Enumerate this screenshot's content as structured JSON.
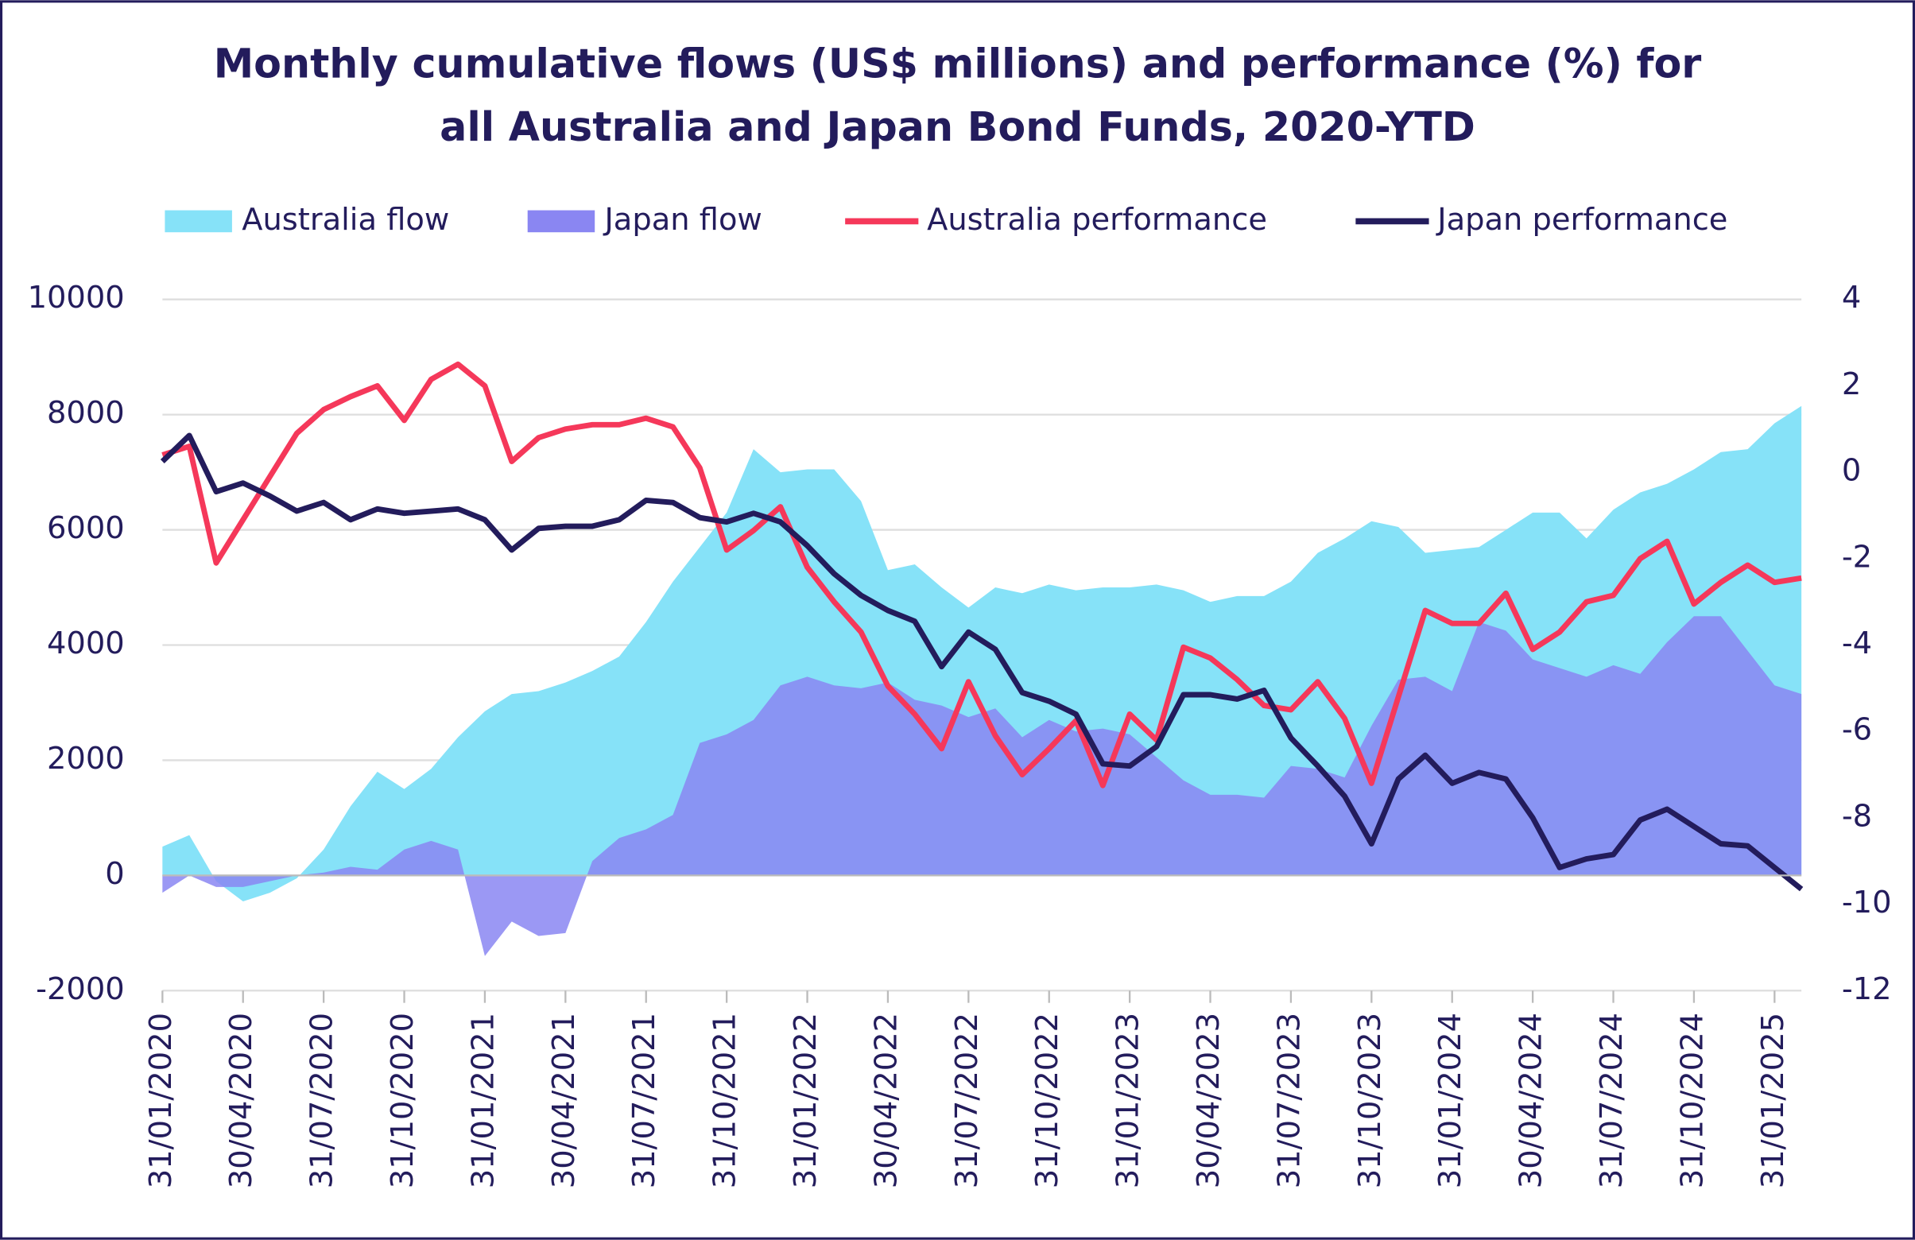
{
  "chart_data": {
    "type": "area",
    "title": [
      "Monthly cumulative flows (US$ millions) and performance (%) for",
      "all Australia and Japan Bond Funds, 2020-YTD"
    ],
    "categories": [
      "31/01/2020",
      null,
      null,
      "30/04/2020",
      null,
      null,
      "31/07/2020",
      null,
      null,
      "31/10/2020",
      null,
      null,
      "31/01/2021",
      null,
      null,
      "30/04/2021",
      null,
      null,
      "31/07/2021",
      null,
      null,
      "31/10/2021",
      null,
      null,
      "31/01/2022",
      null,
      null,
      "30/04/2022",
      null,
      null,
      "31/07/2022",
      null,
      null,
      "31/10/2022",
      null,
      null,
      "31/01/2023",
      null,
      null,
      "30/04/2023",
      null,
      null,
      "31/07/2023",
      null,
      null,
      "31/10/2023",
      null,
      null,
      "31/01/2024",
      null,
      null,
      "30/04/2024",
      null,
      null,
      "31/07/2024",
      null,
      null,
      "31/10/2024",
      null,
      null,
      "31/01/2025",
      null
    ],
    "series": [
      {
        "name": "Australia flow",
        "type": "area",
        "color": "#86e2f8",
        "values": [
          500,
          700,
          -100,
          -450,
          -300,
          -50,
          450,
          1200,
          1800,
          1500,
          1850,
          2400,
          2850,
          3150,
          3200,
          3350,
          3550,
          3800,
          4400,
          5100,
          5700,
          6300,
          7400,
          7000,
          7050,
          7050,
          6500,
          5300,
          5400,
          5000,
          4650,
          5000,
          4900,
          5050,
          4950,
          5000,
          5000,
          5050,
          4950,
          4750,
          4850,
          4850,
          5100,
          5600,
          5850,
          6150,
          6050,
          5600,
          5650,
          5700,
          6000,
          6300,
          6300,
          5850,
          6350,
          6650,
          6800,
          7050,
          7350,
          7400,
          7850,
          8150
        ]
      },
      {
        "name": "Japan flow",
        "type": "area",
        "color": "#8a86f2",
        "values": [
          -300,
          0,
          -200,
          -200,
          -100,
          0,
          50,
          150,
          100,
          450,
          600,
          450,
          -1400,
          -800,
          -1050,
          -1000,
          250,
          650,
          800,
          1050,
          2300,
          2450,
          2700,
          3300,
          3450,
          3300,
          3250,
          3350,
          3050,
          2950,
          2750,
          2900,
          2400,
          2700,
          2500,
          2550,
          2450,
          2050,
          1650,
          1400,
          1400,
          1350,
          1900,
          1850,
          1700,
          2600,
          3400,
          3450,
          3200,
          4400,
          4250,
          3750,
          3600,
          3450,
          3650,
          3500,
          4050,
          4500,
          4500,
          3900,
          3300,
          3150
        ]
      },
      {
        "name": "Australia performance",
        "type": "line",
        "axis": "y2",
        "color": "#f5385a",
        "values": [
          0.4,
          0.6,
          -2.1,
          -1.1,
          -0.1,
          0.9,
          1.45,
          1.75,
          2.0,
          1.2,
          2.15,
          2.5,
          2.0,
          0.25,
          0.8,
          1.0,
          1.1,
          1.1,
          1.25,
          1.05,
          0.1,
          -1.8,
          -1.35,
          -0.8,
          -2.2,
          -3.0,
          -3.7,
          -4.95,
          -5.6,
          -6.4,
          -4.85,
          -6.1,
          -7.0,
          -6.4,
          -5.75,
          -7.25,
          -5.6,
          -6.2,
          -4.05,
          -4.3,
          -4.8,
          -5.4,
          -5.5,
          -4.85,
          -5.7,
          -7.2,
          -5.2,
          -3.2,
          -3.5,
          -3.5,
          -2.8,
          -4.1,
          -3.7,
          -3.0,
          -2.85,
          -2.0,
          -1.6,
          -3.05,
          -2.55,
          -2.15,
          -2.55,
          -2.45
        ]
      },
      {
        "name": "Japan performance",
        "type": "line",
        "axis": "y2",
        "color": "#231c5c",
        "values": [
          0.25,
          0.85,
          -0.45,
          -0.25,
          -0.55,
          -0.9,
          -0.7,
          -1.1,
          -0.85,
          -0.95,
          -0.9,
          -0.85,
          -1.1,
          -1.8,
          -1.3,
          -1.25,
          -1.25,
          -1.1,
          -0.65,
          -0.7,
          -1.05,
          -1.15,
          -0.95,
          -1.15,
          -1.7,
          -2.35,
          -2.85,
          -3.2,
          -3.45,
          -4.5,
          -3.7,
          -4.1,
          -5.1,
          -5.3,
          -5.6,
          -6.75,
          -6.8,
          -6.35,
          -5.15,
          -5.15,
          -5.25,
          -5.05,
          -6.15,
          -6.8,
          -7.5,
          -8.6,
          -7.1,
          -6.55,
          -7.2,
          -6.95,
          -7.1,
          -8.0,
          -9.15,
          -8.95,
          -8.85,
          -8.05,
          -7.8,
          -8.2,
          -8.6,
          -8.65,
          -9.15,
          -9.65
        ]
      }
    ],
    "ylim": [
      -2000,
      10000
    ],
    "yticks": [
      -2000,
      0,
      2000,
      4000,
      6000,
      8000,
      10000
    ],
    "y2lim": [
      -12,
      4
    ],
    "y2ticks": [
      -12,
      -10,
      -8,
      -6,
      -4,
      -2,
      0,
      2,
      4
    ],
    "grid": true,
    "legend": "top"
  }
}
